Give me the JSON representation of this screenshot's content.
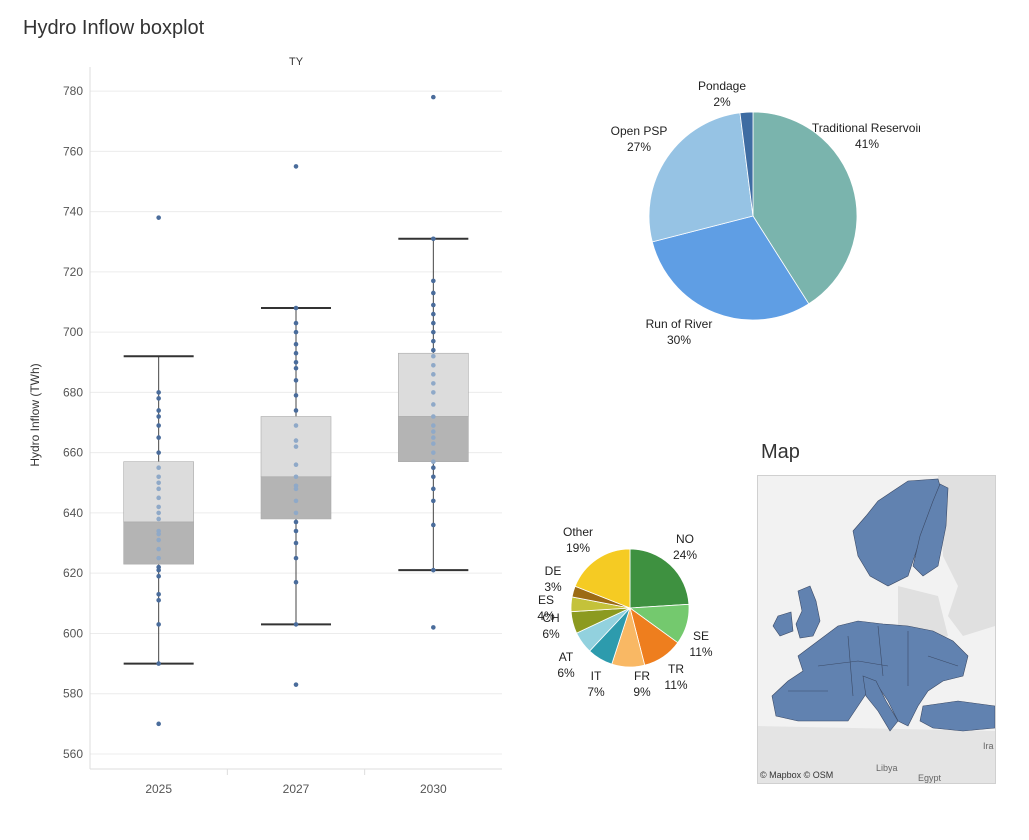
{
  "dashboard": {
    "boxplot_title": "Hydro Inflow boxplot",
    "map_title": "Map",
    "map_credit": "© Mapbox  © OSM"
  },
  "map": {
    "labels": [
      "Libya",
      "Egypt",
      "Ira"
    ],
    "land_color": "#6182b0",
    "background_land": "#dddddd"
  },
  "chart_data": [
    {
      "type": "box",
      "title": "",
      "column_header": "TY",
      "xlabel": "",
      "ylabel": "Hydro Inflow (TWh)",
      "ylim": [
        557,
        788
      ],
      "yticks": [
        560,
        580,
        600,
        620,
        640,
        660,
        680,
        700,
        720,
        740,
        760,
        780
      ],
      "categories": [
        "2025",
        "2027",
        "2030"
      ],
      "boxes": [
        {
          "category": "2025",
          "whisker_low": 590,
          "q1": 623,
          "median": 637,
          "q3": 657,
          "whisker_high": 692,
          "points": [
            570,
            590,
            603,
            611,
            613,
            619,
            621,
            622,
            625,
            628,
            631,
            633,
            634,
            638,
            640,
            642,
            645,
            648,
            650,
            652,
            655,
            660,
            665,
            669,
            672,
            674,
            678,
            680,
            738
          ]
        },
        {
          "category": "2027",
          "whisker_low": 603,
          "q1": 638,
          "median": 652,
          "q3": 672,
          "whisker_high": 708,
          "points": [
            583,
            603,
            617,
            625,
            630,
            634,
            637,
            640,
            644,
            648,
            649,
            652,
            656,
            662,
            664,
            669,
            674,
            679,
            684,
            688,
            690,
            693,
            696,
            700,
            703,
            708,
            755
          ]
        },
        {
          "category": "2030",
          "whisker_low": 621,
          "q1": 657,
          "median": 672,
          "q3": 693,
          "whisker_high": 731,
          "points": [
            602,
            621,
            636,
            644,
            648,
            652,
            655,
            657,
            660,
            663,
            665,
            667,
            669,
            672,
            676,
            680,
            683,
            686,
            689,
            692,
            694,
            697,
            700,
            703,
            706,
            709,
            713,
            717,
            731,
            778
          ]
        }
      ]
    },
    {
      "type": "pie",
      "title": "",
      "slices": [
        {
          "label": "Traditional Reservoir",
          "value": 41,
          "pct_label": "41%",
          "color": "#7ab4ad"
        },
        {
          "label": "Run of River",
          "value": 30,
          "pct_label": "30%",
          "color": "#5f9ee4"
        },
        {
          "label": "Open PSP",
          "value": 27,
          "pct_label": "27%",
          "color": "#96c3e4"
        },
        {
          "label": "Pondage",
          "value": 2,
          "pct_label": "2%",
          "color": "#3e6ca2"
        }
      ]
    },
    {
      "type": "pie",
      "title": "",
      "slices": [
        {
          "label": "NO",
          "value": 24,
          "pct_label": "24%",
          "color": "#3e9140"
        },
        {
          "label": "SE",
          "value": 11,
          "pct_label": "11%",
          "color": "#74c96e"
        },
        {
          "label": "TR",
          "value": 11,
          "pct_label": "11%",
          "color": "#ee7e1e"
        },
        {
          "label": "FR",
          "value": 9,
          "pct_label": "9%",
          "color": "#f9b864"
        },
        {
          "label": "IT",
          "value": 7,
          "pct_label": "7%",
          "color": "#2d9bad"
        },
        {
          "label": "AT",
          "value": 6,
          "pct_label": "6%",
          "color": "#92d1de"
        },
        {
          "label": "CH",
          "value": 6,
          "pct_label": "6%",
          "color": "#8c9a20"
        },
        {
          "label": "ES",
          "value": 4,
          "pct_label": "4%",
          "color": "#c4c23a"
        },
        {
          "label": "DE",
          "value": 3,
          "pct_label": "3%",
          "color": "#9c6b14"
        },
        {
          "label": "Other",
          "value": 19,
          "pct_label": "19%",
          "color": "#f5cb23"
        }
      ]
    }
  ]
}
